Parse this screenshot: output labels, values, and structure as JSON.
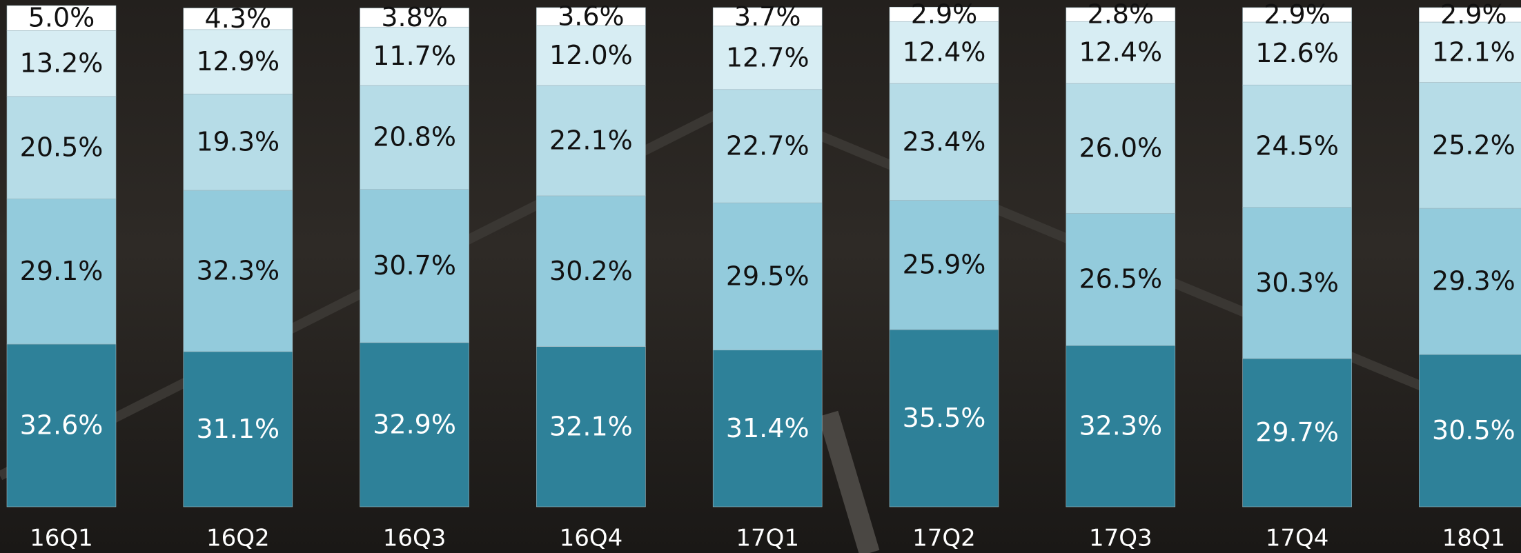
{
  "chart_data": {
    "type": "stacked_bar",
    "categories": [
      "16Q1",
      "16Q2",
      "16Q3",
      "16Q4",
      "17Q1",
      "17Q2",
      "17Q3",
      "17Q4",
      "18Q1"
    ],
    "series": [
      {
        "color": "#2e8199",
        "label_color": "#ffffff",
        "values": [
          32.6,
          31.1,
          32.9,
          32.1,
          31.4,
          35.5,
          32.3,
          29.7,
          30.5
        ],
        "value_labels": [
          "32.6%",
          "31.1%",
          "32.9%",
          "32.1%",
          "31.4%",
          "35.5%",
          "32.3%",
          "29.7%",
          "30.5%"
        ]
      },
      {
        "color": "#93cbdc",
        "label_color": "#111111",
        "values": [
          29.1,
          32.3,
          30.7,
          30.2,
          29.5,
          25.9,
          26.5,
          30.3,
          29.3
        ],
        "value_labels": [
          "29.1%",
          "32.3%",
          "30.7%",
          "30.2%",
          "29.5%",
          "25.9%",
          "26.5%",
          "30.3%",
          "29.3%"
        ]
      },
      {
        "color": "#b6dce7",
        "label_color": "#111111",
        "values": [
          20.5,
          19.3,
          20.8,
          22.1,
          22.7,
          23.4,
          26.0,
          24.5,
          25.2
        ],
        "value_labels": [
          "20.5%",
          "19.3%",
          "20.8%",
          "22.1%",
          "22.7%",
          "23.4%",
          "26.0%",
          "24.5%",
          "25.2%"
        ]
      },
      {
        "color": "#d7edf3",
        "label_color": "#111111",
        "values": [
          13.2,
          12.9,
          11.7,
          12.0,
          12.7,
          12.4,
          12.4,
          12.6,
          12.1
        ],
        "value_labels": [
          "13.2%",
          "12.9%",
          "11.7%",
          "12.0%",
          "12.7%",
          "12.4%",
          "12.4%",
          "12.6%",
          "12.1%"
        ]
      },
      {
        "color": "#ffffff",
        "label_color": "#111111",
        "values": [
          5.0,
          4.3,
          3.8,
          3.6,
          3.7,
          2.9,
          2.8,
          2.9,
          2.9
        ],
        "value_labels": [
          "5.0%",
          "4.3%",
          "3.8%",
          "3.6%",
          "3.7%",
          "2.9%",
          "2.8%",
          "2.9%",
          "2.9%"
        ]
      }
    ]
  }
}
